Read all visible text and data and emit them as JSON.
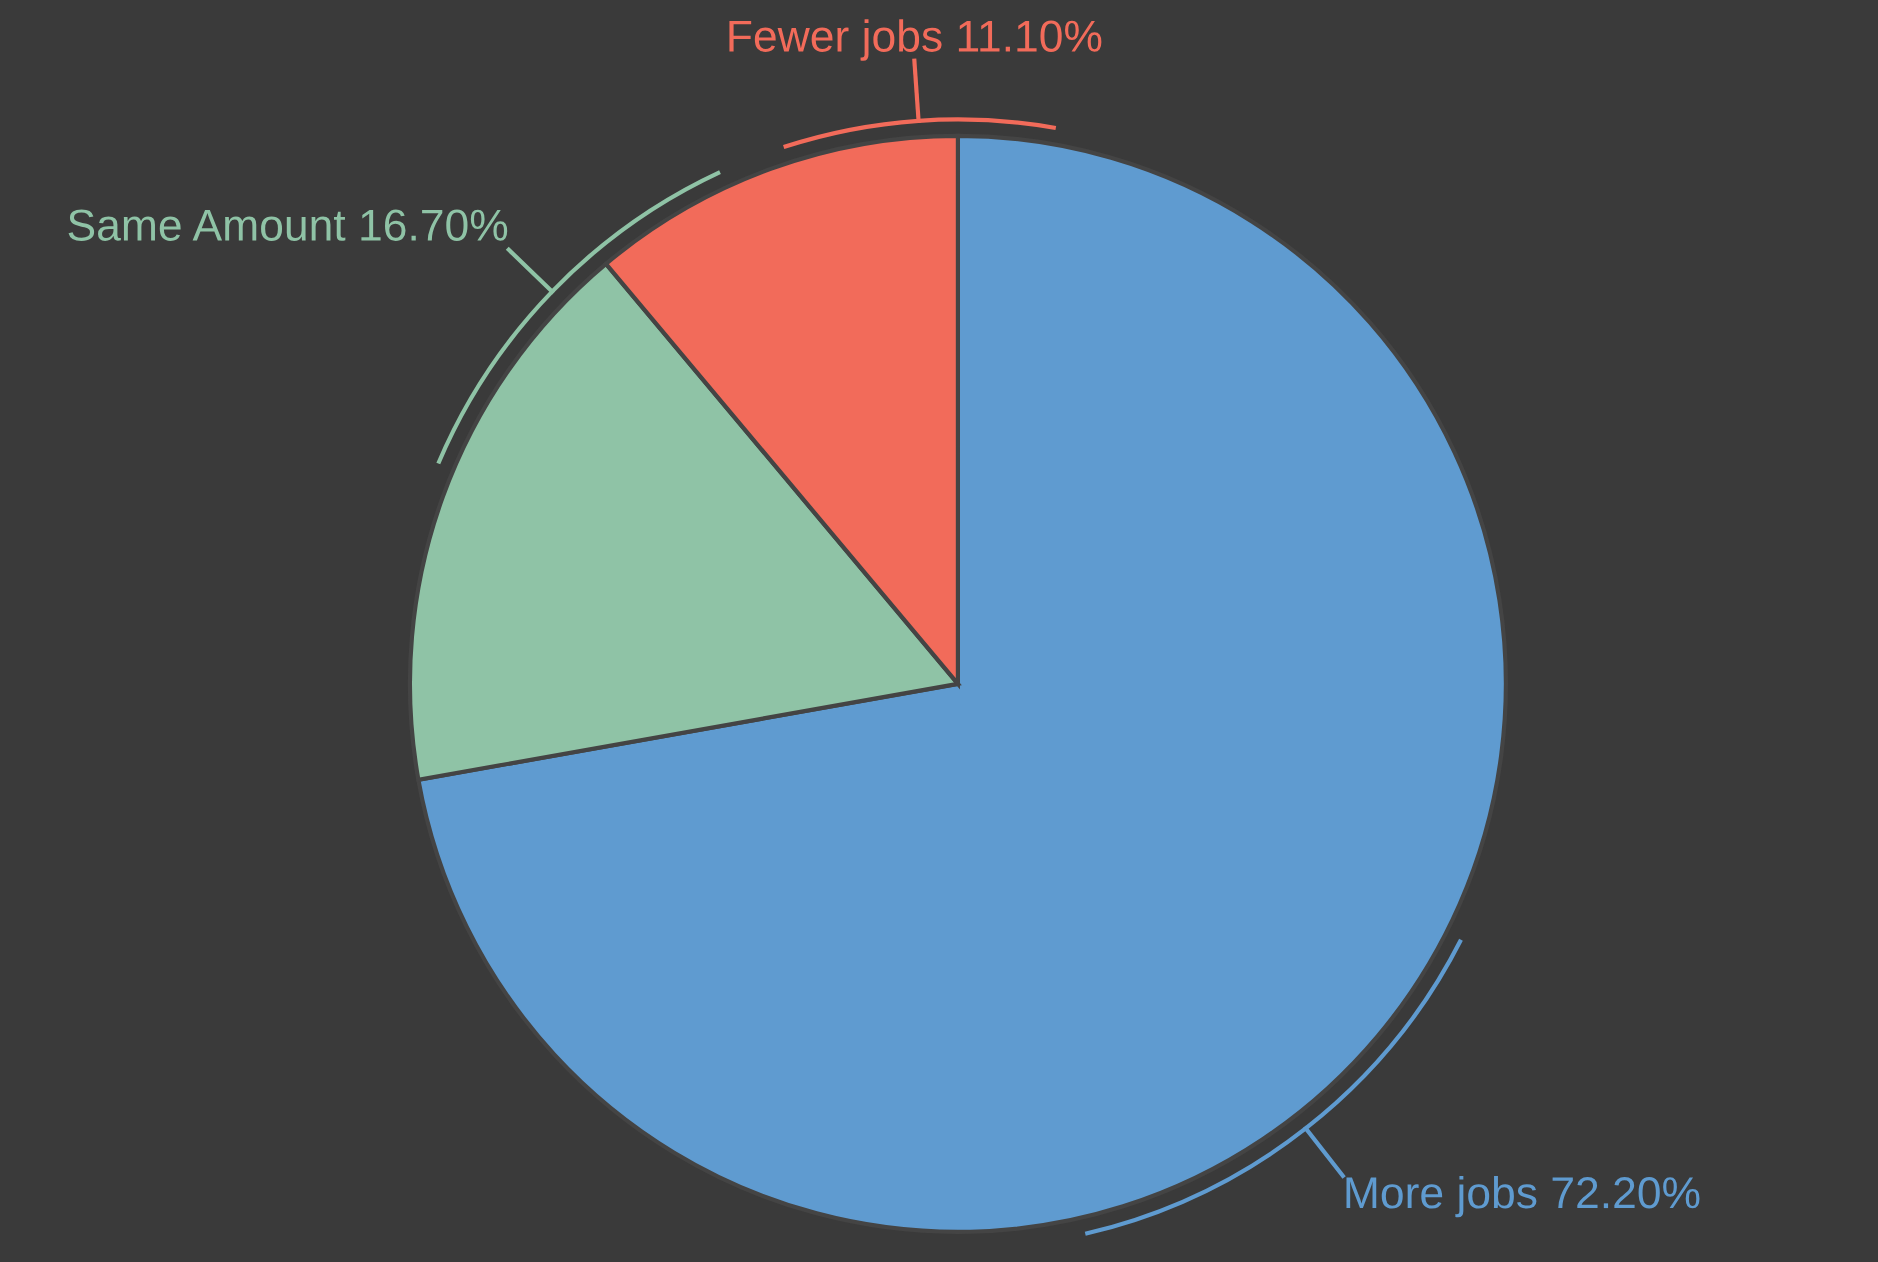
{
  "chart_data": {
    "type": "pie",
    "categories": [
      "More jobs",
      "Same Amount",
      "Fewer jobs"
    ],
    "values": [
      72.2,
      16.7,
      11.1
    ],
    "value_labels": [
      "72.20%",
      "16.70%",
      "11.10%"
    ],
    "colors": [
      "#5f9bd0",
      "#8fc3a6",
      "#f26b5a"
    ]
  }
}
